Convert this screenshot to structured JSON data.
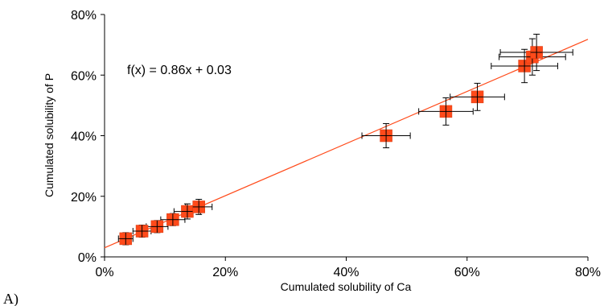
{
  "panel_label": "A)",
  "chart_data": {
    "type": "scatter",
    "xlabel": "Cumulated solubility of Ca",
    "ylabel": "Cumulated solubility of P",
    "xlim": [
      0,
      0.8
    ],
    "ylim": [
      0,
      0.8
    ],
    "x_ticks": [
      0,
      0.2,
      0.4,
      0.6,
      0.8
    ],
    "y_ticks": [
      0,
      0.2,
      0.4,
      0.6,
      0.8
    ],
    "x_tick_labels": [
      "0%",
      "20%",
      "40%",
      "60%",
      "80%"
    ],
    "y_tick_labels": [
      "0%",
      "20%",
      "40%",
      "60%",
      "80%"
    ],
    "grid": false,
    "legend": "none",
    "trendline": {
      "equation": "f(x) = 0.86x + 0.03",
      "slope": 0.86,
      "intercept": 0.03,
      "color": "#ff4a1a"
    },
    "marker_color": "#ff4a1a",
    "errorbar_color": "#000000",
    "points": [
      {
        "x": 0.035,
        "y": 0.06,
        "xerr": 0.012,
        "yerr": 0.02
      },
      {
        "x": 0.062,
        "y": 0.085,
        "xerr": 0.015,
        "yerr": 0.02
      },
      {
        "x": 0.087,
        "y": 0.1,
        "xerr": 0.018,
        "yerr": 0.02
      },
      {
        "x": 0.113,
        "y": 0.123,
        "xerr": 0.02,
        "yerr": 0.02
      },
      {
        "x": 0.137,
        "y": 0.15,
        "xerr": 0.022,
        "yerr": 0.025
      },
      {
        "x": 0.156,
        "y": 0.165,
        "xerr": 0.022,
        "yerr": 0.025
      },
      {
        "x": 0.466,
        "y": 0.4,
        "xerr": 0.04,
        "yerr": 0.04
      },
      {
        "x": 0.565,
        "y": 0.48,
        "xerr": 0.045,
        "yerr": 0.045
      },
      {
        "x": 0.617,
        "y": 0.528,
        "xerr": 0.045,
        "yerr": 0.045
      },
      {
        "x": 0.695,
        "y": 0.63,
        "xerr": 0.055,
        "yerr": 0.055
      },
      {
        "x": 0.708,
        "y": 0.66,
        "xerr": 0.055,
        "yerr": 0.06
      },
      {
        "x": 0.715,
        "y": 0.675,
        "xerr": 0.06,
        "yerr": 0.06
      }
    ]
  }
}
